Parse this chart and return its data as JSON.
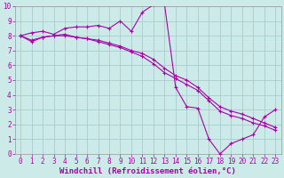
{
  "background_color": "#cceae7",
  "line_color": "#aa00aa",
  "grid_color": "#aacccc",
  "xlabel": "Windchill (Refroidissement éolien,°C)",
  "tick_fontsize": 5.5,
  "xlabel_fontsize": 6.5,
  "xlim": [
    -0.5,
    23.5
  ],
  "ylim": [
    0,
    10
  ],
  "xticks": [
    0,
    1,
    2,
    3,
    4,
    5,
    6,
    7,
    8,
    9,
    10,
    11,
    12,
    13,
    14,
    15,
    16,
    17,
    18,
    19,
    20,
    21,
    22,
    23
  ],
  "yticks": [
    0,
    1,
    2,
    3,
    4,
    5,
    6,
    7,
    8,
    9,
    10
  ],
  "curve1_x": [
    0,
    1,
    2,
    3,
    4,
    5,
    6,
    7,
    8,
    9,
    10,
    11,
    12,
    13,
    14,
    15,
    16,
    17,
    18,
    19,
    20,
    21,
    22,
    23
  ],
  "curve1_y": [
    8.0,
    8.2,
    8.3,
    8.1,
    8.5,
    8.6,
    8.6,
    8.7,
    8.5,
    9.0,
    8.3,
    9.6,
    10.1,
    10.1,
    4.5,
    3.2,
    3.1,
    1.0,
    0.0,
    0.7,
    1.0,
    1.3,
    2.5,
    3.0
  ],
  "curve2_x": [
    0,
    1,
    2,
    3,
    4,
    5,
    6,
    7,
    8,
    9,
    10,
    11,
    12,
    13,
    14,
    15,
    16,
    17,
    18,
    19,
    20,
    21,
    22,
    23
  ],
  "curve2_y": [
    8.0,
    7.7,
    7.9,
    8.0,
    8.1,
    7.9,
    7.8,
    7.7,
    7.5,
    7.3,
    7.0,
    6.8,
    6.4,
    5.8,
    5.3,
    5.0,
    4.5,
    3.8,
    3.2,
    2.9,
    2.7,
    2.4,
    2.1,
    1.8
  ],
  "curve3_x": [
    0,
    1,
    2,
    3,
    4,
    5,
    6,
    7,
    8,
    9,
    10,
    11,
    12,
    13,
    14,
    15,
    16,
    17,
    18,
    19,
    20,
    21,
    22,
    23
  ],
  "curve3_y": [
    8.0,
    7.6,
    7.9,
    8.0,
    8.0,
    7.9,
    7.8,
    7.6,
    7.4,
    7.2,
    6.9,
    6.6,
    6.1,
    5.5,
    5.1,
    4.7,
    4.3,
    3.6,
    2.9,
    2.6,
    2.4,
    2.1,
    1.9,
    1.6
  ]
}
